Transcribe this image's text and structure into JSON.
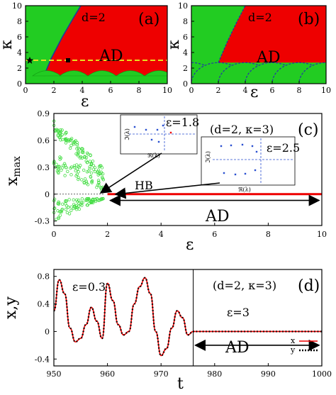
{
  "chart_data": [
    {
      "type": "heatmap",
      "panel": "(a)",
      "annotation": "d=2",
      "region_label": "AD",
      "xlabel": "ε",
      "ylabel": "κ",
      "xlim": [
        0,
        10
      ],
      "ylim": [
        0,
        10
      ],
      "xticks": [
        "0",
        "2",
        "4",
        "6",
        "8",
        "10"
      ],
      "yticks": [
        "0",
        "2",
        "4",
        "6",
        "8",
        "10"
      ],
      "colors": {
        "oscillation": "#22cc22",
        "ad": "#ee0000",
        "boundary": "#1a3f9a",
        "dashed": "#e8e020"
      },
      "boundary_left": [
        [
          1.3,
          1.0
        ],
        [
          1.8,
          3.2
        ],
        [
          2.6,
          6.0
        ],
        [
          3.4,
          8.5
        ],
        [
          3.9,
          10.0
        ]
      ],
      "lower_scallops_x": [
        1.5,
        3.4,
        5.4,
        7.4,
        9.4
      ],
      "lower_scallop_peak": 1.8,
      "dashed_line_kappa": 3,
      "markers": [
        {
          "symbol": "star",
          "x": 0.3,
          "y": 3
        },
        {
          "symbol": "square",
          "x": 3,
          "y": 3
        }
      ]
    },
    {
      "type": "heatmap",
      "panel": "(b)",
      "annotation": "d=2",
      "region_label": "AD",
      "xlabel": "ε",
      "ylabel": "κ",
      "xlim": [
        0,
        10
      ],
      "ylim": [
        0,
        10
      ],
      "xticks": [
        "0",
        "2",
        "4",
        "6",
        "8",
        "10"
      ],
      "yticks": [
        "0",
        "2",
        "4",
        "6",
        "8",
        "10"
      ],
      "boundary_left": [
        [
          2.0,
          2.7
        ],
        [
          2.7,
          5.5
        ],
        [
          3.4,
          8.0
        ],
        [
          4.0,
          10.0
        ]
      ],
      "circle_centers_x": [
        0,
        2,
        4,
        6,
        8,
        10
      ],
      "circle_radius": 2.0
    },
    {
      "type": "scatter",
      "panel": "(c)",
      "annotation": "(d=2, κ=3)",
      "xlabel": "ε",
      "ylabel": "x",
      "ylabel_sub": "max",
      "xlim": [
        0,
        10
      ],
      "ylim": [
        -0.35,
        0.9
      ],
      "xticks": [
        "0",
        "2",
        "4",
        "6",
        "8",
        "10"
      ],
      "yticks": [
        "-0.3",
        "0",
        "0.3",
        "0.6",
        "0.9"
      ],
      "hb_label": "HB",
      "hb_x": 1.85,
      "ad_label": "AD",
      "ad_line": {
        "x_start": 2.0,
        "x_end": 10,
        "y": 0
      },
      "insets": [
        {
          "label": "ε=1.8",
          "xlabel": "ℜ(λ)",
          "ylabel": "ℑ(λ)",
          "xticks": [
            "-0.2",
            "-0.1",
            "0"
          ],
          "yticks": [
            "3",
            "0",
            "-3"
          ]
        },
        {
          "label": "ε=2.5",
          "xlabel": "ℜ(λ)",
          "ylabel": "ℑ(λ)",
          "xticks": [
            "-0.2",
            "-0.1",
            "0"
          ],
          "yticks": [
            "3",
            "0",
            "-3"
          ]
        }
      ]
    },
    {
      "type": "line",
      "panel": "(d)",
      "annotation": "(d=2, κ=3)",
      "eps_left": "ε=0.3",
      "eps_right": "ε=3",
      "ad_label": "AD",
      "xlabel": "t",
      "ylabel": "x,y",
      "xlim": [
        950,
        1000
      ],
      "ylim": [
        -0.5,
        0.9
      ],
      "xticks": [
        "950",
        "960",
        "970",
        "980",
        "990",
        "1000"
      ],
      "yticks": [
        "-0.4",
        "0",
        "0.4",
        "0.8"
      ],
      "switch_t": 976,
      "series": [
        {
          "name": "x",
          "color": "#ee0000",
          "style": "solid"
        },
        {
          "name": "y",
          "color": "#000000",
          "style": "dotted"
        }
      ],
      "x": [
        950,
        951,
        952,
        953,
        954,
        955,
        956,
        957,
        958,
        959,
        960,
        961,
        962,
        963,
        964,
        965,
        966,
        967,
        968,
        969,
        970,
        971,
        972,
        973,
        974,
        975,
        976,
        977,
        980,
        985,
        990,
        995,
        1000
      ],
      "values": [
        0.3,
        0.75,
        0.55,
        0.05,
        -0.15,
        -0.1,
        0.1,
        0.35,
        0.15,
        -0.1,
        0.7,
        0.45,
        0.1,
        -0.05,
        0.0,
        0.4,
        0.65,
        0.78,
        0.55,
        0.0,
        -0.35,
        -0.25,
        0.05,
        0.3,
        0.2,
        -0.05,
        0.0,
        0.0,
        0.0,
        0.0,
        0.0,
        0.0,
        0.0
      ]
    }
  ]
}
